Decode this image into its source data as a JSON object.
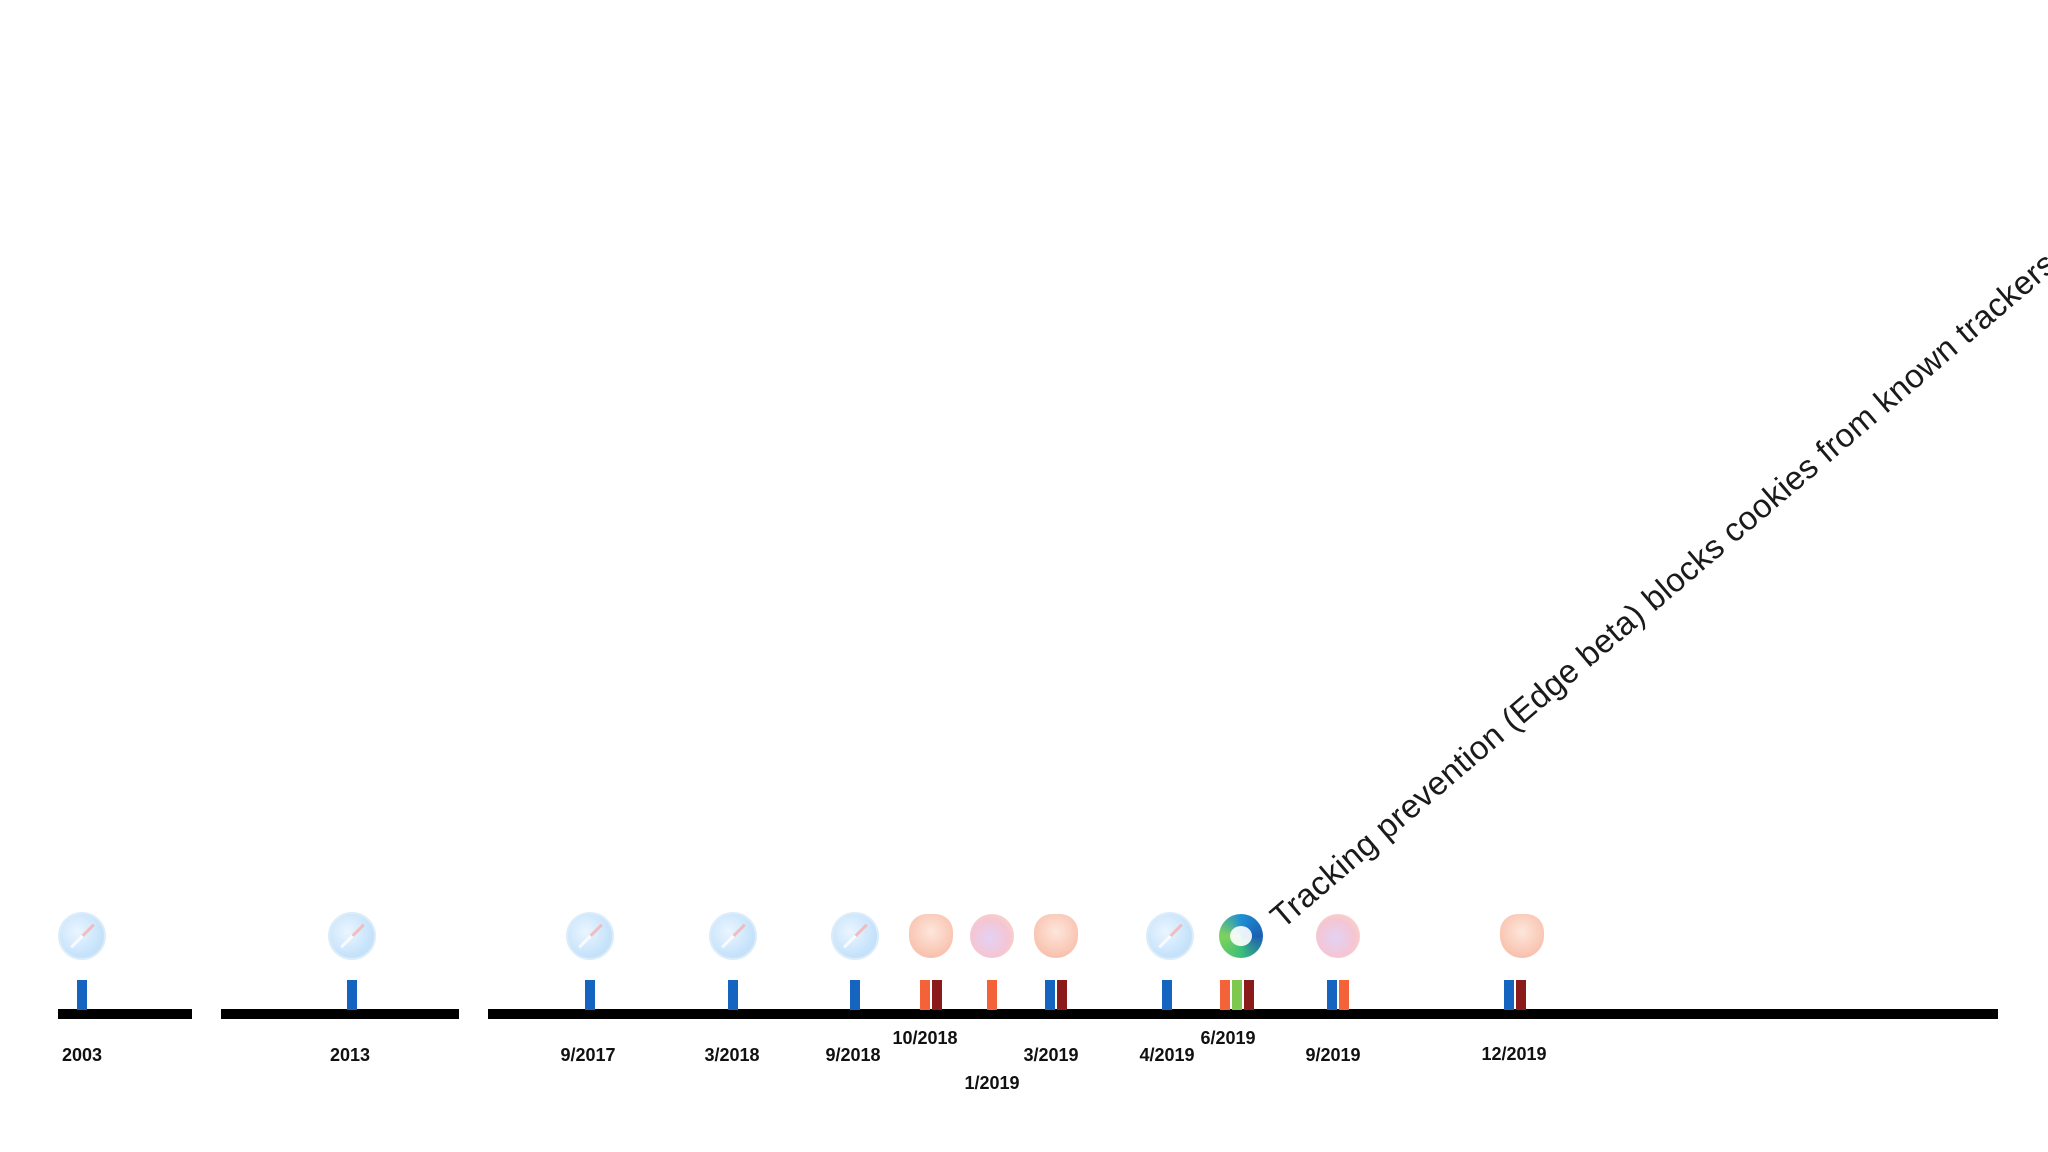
{
  "colors": {
    "axis": "#000000",
    "safari": "#1565c0",
    "brave": "#8b1a1a",
    "firefox": "#f4623a",
    "edge": "#7ec850"
  },
  "annotation": "Tracking prevention (Edge beta) blocks cookies from known trackers",
  "events": [
    {
      "label": "2003",
      "browsers": [
        "safari"
      ],
      "icons": [
        "safari-icon"
      ]
    },
    {
      "label": "2013",
      "browsers": [
        "safari"
      ],
      "icons": [
        "safari-icon"
      ]
    },
    {
      "label": "9/2017",
      "browsers": [
        "safari"
      ],
      "icons": [
        "safari-icon"
      ]
    },
    {
      "label": "3/2018",
      "browsers": [
        "safari"
      ],
      "icons": [
        "safari-icon"
      ]
    },
    {
      "label": "9/2018",
      "browsers": [
        "safari"
      ],
      "icons": [
        "safari-icon"
      ]
    },
    {
      "label": "10/2018",
      "browsers": [
        "firefox",
        "brave"
      ],
      "icons": [
        "brave-icon"
      ]
    },
    {
      "label": "1/2019",
      "browsers": [
        "firefox"
      ],
      "icons": [
        "firefox-icon"
      ]
    },
    {
      "label": "3/2019",
      "browsers": [
        "safari",
        "brave"
      ],
      "icons": [
        "brave-icon"
      ]
    },
    {
      "label": "4/2019",
      "browsers": [
        "safari"
      ],
      "icons": [
        "safari-icon"
      ]
    },
    {
      "label": "6/2019",
      "browsers": [
        "firefox",
        "edge",
        "brave"
      ],
      "icons": [
        "edge-icon"
      ]
    },
    {
      "label": "9/2019",
      "browsers": [
        "safari",
        "firefox"
      ],
      "icons": [
        "firefox-icon"
      ]
    },
    {
      "label": "12/2019",
      "browsers": [
        "safari",
        "brave"
      ],
      "icons": [
        "brave-icon"
      ]
    }
  ]
}
